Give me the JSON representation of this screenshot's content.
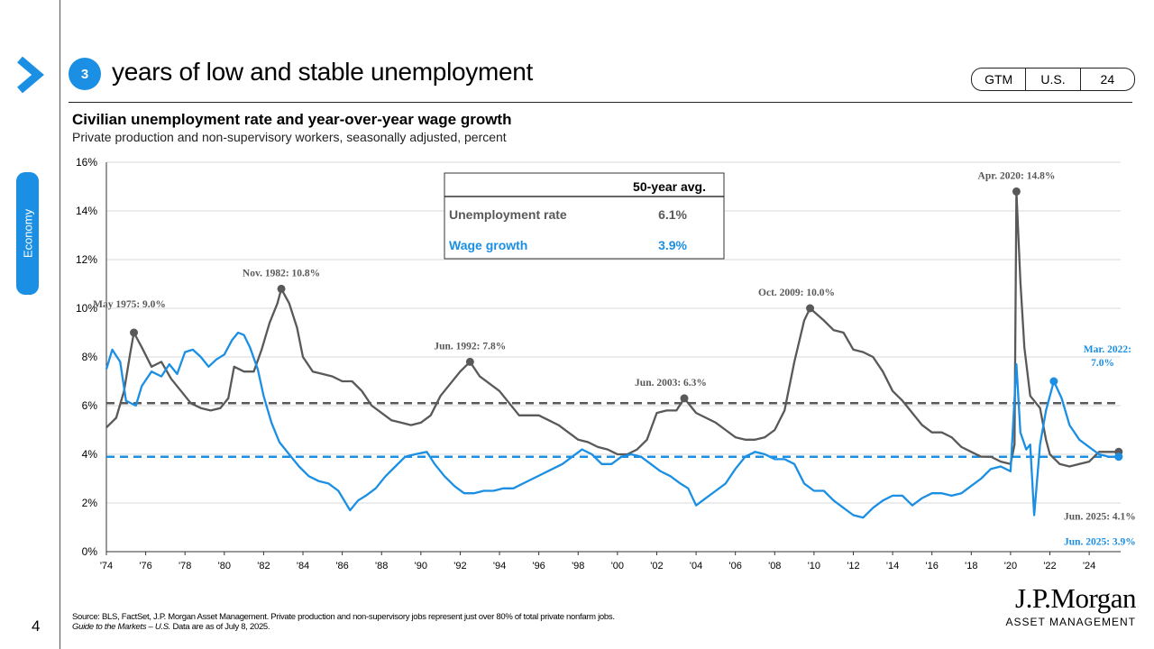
{
  "header": {
    "badge": "3",
    "headline": "years of low and stable unemployment",
    "tags": [
      "GTM",
      "U.S.",
      "24"
    ]
  },
  "sidebar": {
    "section": "Economy"
  },
  "page_number": "4",
  "chart_data": {
    "type": "line",
    "title": "Civilian unemployment rate and year-over-year wage growth",
    "subtitle": "Private production and non-supervisory workers, seasonally adjusted, percent",
    "xlim": [
      1974,
      2025.6
    ],
    "ylim": [
      0,
      16
    ],
    "x_ticks": [
      {
        "value": 1974,
        "label": "'74"
      },
      {
        "value": 1976,
        "label": "'76"
      },
      {
        "value": 1978,
        "label": "'78"
      },
      {
        "value": 1980,
        "label": "'80"
      },
      {
        "value": 1982,
        "label": "'82"
      },
      {
        "value": 1984,
        "label": "'84"
      },
      {
        "value": 1986,
        "label": "'86"
      },
      {
        "value": 1988,
        "label": "'88"
      },
      {
        "value": 1990,
        "label": "'90"
      },
      {
        "value": 1992,
        "label": "'92"
      },
      {
        "value": 1994,
        "label": "'94"
      },
      {
        "value": 1996,
        "label": "'96"
      },
      {
        "value": 1998,
        "label": "'98"
      },
      {
        "value": 2000,
        "label": "'00"
      },
      {
        "value": 2002,
        "label": "'02"
      },
      {
        "value": 2004,
        "label": "'04"
      },
      {
        "value": 2006,
        "label": "'06"
      },
      {
        "value": 2008,
        "label": "'08"
      },
      {
        "value": 2010,
        "label": "'10"
      },
      {
        "value": 2012,
        "label": "'12"
      },
      {
        "value": 2014,
        "label": "'14"
      },
      {
        "value": 2016,
        "label": "'16"
      },
      {
        "value": 2018,
        "label": "'18"
      },
      {
        "value": 2020,
        "label": "'20"
      },
      {
        "value": 2022,
        "label": "'22"
      },
      {
        "value": 2024,
        "label": "'24"
      }
    ],
    "y_ticks": [
      {
        "value": 0,
        "label": "0%"
      },
      {
        "value": 2,
        "label": "2%"
      },
      {
        "value": 4,
        "label": "4%"
      },
      {
        "value": 6,
        "label": "6%"
      },
      {
        "value": 8,
        "label": "8%"
      },
      {
        "value": 10,
        "label": "10%"
      },
      {
        "value": 12,
        "label": "12%"
      },
      {
        "value": 14,
        "label": "14%"
      },
      {
        "value": 16,
        "label": "16%"
      }
    ],
    "series": [
      {
        "name": "Unemployment rate",
        "color": "#595959",
        "average": 6.1,
        "points": [
          [
            1974.0,
            5.1
          ],
          [
            1974.5,
            5.5
          ],
          [
            1974.9,
            6.6
          ],
          [
            1975.2,
            8.1
          ],
          [
            1975.4,
            9.0
          ],
          [
            1975.8,
            8.4
          ],
          [
            1976.3,
            7.6
          ],
          [
            1976.8,
            7.8
          ],
          [
            1977.3,
            7.1
          ],
          [
            1977.8,
            6.6
          ],
          [
            1978.3,
            6.1
          ],
          [
            1978.8,
            5.9
          ],
          [
            1979.3,
            5.8
          ],
          [
            1979.8,
            5.9
          ],
          [
            1980.2,
            6.3
          ],
          [
            1980.5,
            7.6
          ],
          [
            1981.0,
            7.4
          ],
          [
            1981.5,
            7.4
          ],
          [
            1981.9,
            8.3
          ],
          [
            1982.3,
            9.4
          ],
          [
            1982.7,
            10.2
          ],
          [
            1982.9,
            10.8
          ],
          [
            1983.3,
            10.2
          ],
          [
            1983.7,
            9.2
          ],
          [
            1984.0,
            8.0
          ],
          [
            1984.5,
            7.4
          ],
          [
            1985.0,
            7.3
          ],
          [
            1985.5,
            7.2
          ],
          [
            1986.0,
            7.0
          ],
          [
            1986.5,
            7.0
          ],
          [
            1987.0,
            6.6
          ],
          [
            1987.5,
            6.0
          ],
          [
            1988.0,
            5.7
          ],
          [
            1988.5,
            5.4
          ],
          [
            1989.0,
            5.3
          ],
          [
            1989.5,
            5.2
          ],
          [
            1990.0,
            5.3
          ],
          [
            1990.5,
            5.6
          ],
          [
            1991.0,
            6.4
          ],
          [
            1991.5,
            6.9
          ],
          [
            1992.0,
            7.4
          ],
          [
            1992.5,
            7.8
          ],
          [
            1993.0,
            7.2
          ],
          [
            1993.5,
            6.9
          ],
          [
            1994.0,
            6.6
          ],
          [
            1994.5,
            6.1
          ],
          [
            1995.0,
            5.6
          ],
          [
            1995.5,
            5.6
          ],
          [
            1996.0,
            5.6
          ],
          [
            1996.5,
            5.4
          ],
          [
            1997.0,
            5.2
          ],
          [
            1997.5,
            4.9
          ],
          [
            1998.0,
            4.6
          ],
          [
            1998.5,
            4.5
          ],
          [
            1999.0,
            4.3
          ],
          [
            1999.5,
            4.2
          ],
          [
            2000.0,
            4.0
          ],
          [
            2000.5,
            4.0
          ],
          [
            2001.0,
            4.2
          ],
          [
            2001.5,
            4.6
          ],
          [
            2002.0,
            5.7
          ],
          [
            2002.5,
            5.8
          ],
          [
            2003.0,
            5.8
          ],
          [
            2003.4,
            6.3
          ],
          [
            2004.0,
            5.7
          ],
          [
            2004.5,
            5.5
          ],
          [
            2005.0,
            5.3
          ],
          [
            2005.5,
            5.0
          ],
          [
            2006.0,
            4.7
          ],
          [
            2006.5,
            4.6
          ],
          [
            2007.0,
            4.6
          ],
          [
            2007.5,
            4.7
          ],
          [
            2008.0,
            5.0
          ],
          [
            2008.5,
            5.8
          ],
          [
            2009.0,
            7.8
          ],
          [
            2009.5,
            9.5
          ],
          [
            2009.8,
            10.0
          ],
          [
            2010.5,
            9.5
          ],
          [
            2011.0,
            9.1
          ],
          [
            2011.5,
            9.0
          ],
          [
            2012.0,
            8.3
          ],
          [
            2012.5,
            8.2
          ],
          [
            2013.0,
            8.0
          ],
          [
            2013.5,
            7.4
          ],
          [
            2014.0,
            6.6
          ],
          [
            2014.5,
            6.2
          ],
          [
            2015.0,
            5.7
          ],
          [
            2015.5,
            5.2
          ],
          [
            2016.0,
            4.9
          ],
          [
            2016.5,
            4.9
          ],
          [
            2017.0,
            4.7
          ],
          [
            2017.5,
            4.3
          ],
          [
            2018.0,
            4.1
          ],
          [
            2018.5,
            3.9
          ],
          [
            2019.0,
            3.9
          ],
          [
            2019.5,
            3.7
          ],
          [
            2020.0,
            3.6
          ],
          [
            2020.2,
            4.4
          ],
          [
            2020.3,
            14.8
          ],
          [
            2020.5,
            11.1
          ],
          [
            2020.7,
            8.4
          ],
          [
            2021.0,
            6.4
          ],
          [
            2021.5,
            5.9
          ],
          [
            2021.8,
            4.6
          ],
          [
            2022.0,
            4.0
          ],
          [
            2022.5,
            3.6
          ],
          [
            2023.0,
            3.5
          ],
          [
            2023.5,
            3.6
          ],
          [
            2024.0,
            3.7
          ],
          [
            2024.5,
            4.1
          ],
          [
            2025.0,
            4.1
          ],
          [
            2025.5,
            4.1
          ]
        ],
        "annotations": [
          {
            "x": 1975.4,
            "y": 9.0,
            "label": "May 1975: 9.0%"
          },
          {
            "x": 1982.9,
            "y": 10.8,
            "label": "Nov. 1982: 10.8%"
          },
          {
            "x": 1992.5,
            "y": 7.8,
            "label": "Jun. 1992: 7.8%"
          },
          {
            "x": 2003.4,
            "y": 6.3,
            "label": "Jun. 2003: 6.3%"
          },
          {
            "x": 2009.8,
            "y": 10.0,
            "label": "Oct. 2009: 10.0%"
          },
          {
            "x": 2020.3,
            "y": 14.8,
            "label": "Apr. 2020: 14.8%"
          },
          {
            "x": 2025.5,
            "y": 4.1,
            "label": "Jun. 2025: 4.1%"
          }
        ]
      },
      {
        "name": "Wage growth",
        "color": "#1a8fe3",
        "average": 3.9,
        "points": [
          [
            1974.0,
            7.5
          ],
          [
            1974.3,
            8.3
          ],
          [
            1974.7,
            7.8
          ],
          [
            1975.0,
            6.2
          ],
          [
            1975.5,
            6.0
          ],
          [
            1975.8,
            6.8
          ],
          [
            1976.3,
            7.4
          ],
          [
            1976.8,
            7.2
          ],
          [
            1977.2,
            7.7
          ],
          [
            1977.6,
            7.3
          ],
          [
            1978.0,
            8.2
          ],
          [
            1978.4,
            8.3
          ],
          [
            1978.8,
            8.0
          ],
          [
            1979.2,
            7.6
          ],
          [
            1979.6,
            7.9
          ],
          [
            1980.0,
            8.1
          ],
          [
            1980.4,
            8.7
          ],
          [
            1980.7,
            9.0
          ],
          [
            1981.0,
            8.9
          ],
          [
            1981.3,
            8.4
          ],
          [
            1981.7,
            7.5
          ],
          [
            1982.0,
            6.4
          ],
          [
            1982.4,
            5.3
          ],
          [
            1982.8,
            4.5
          ],
          [
            1983.4,
            3.9
          ],
          [
            1983.8,
            3.5
          ],
          [
            1984.3,
            3.1
          ],
          [
            1984.8,
            2.9
          ],
          [
            1985.3,
            2.8
          ],
          [
            1985.8,
            2.5
          ],
          [
            1986.4,
            1.7
          ],
          [
            1986.8,
            2.1
          ],
          [
            1987.2,
            2.3
          ],
          [
            1987.7,
            2.6
          ],
          [
            1988.2,
            3.1
          ],
          [
            1988.7,
            3.5
          ],
          [
            1989.2,
            3.9
          ],
          [
            1989.7,
            4.0
          ],
          [
            1990.3,
            4.1
          ],
          [
            1990.7,
            3.6
          ],
          [
            1991.2,
            3.1
          ],
          [
            1991.7,
            2.7
          ],
          [
            1992.2,
            2.4
          ],
          [
            1992.7,
            2.4
          ],
          [
            1993.2,
            2.5
          ],
          [
            1993.7,
            2.5
          ],
          [
            1994.2,
            2.6
          ],
          [
            1994.7,
            2.6
          ],
          [
            1995.2,
            2.8
          ],
          [
            1995.7,
            3.0
          ],
          [
            1996.2,
            3.2
          ],
          [
            1996.7,
            3.4
          ],
          [
            1997.2,
            3.6
          ],
          [
            1997.7,
            3.9
          ],
          [
            1998.2,
            4.2
          ],
          [
            1998.7,
            4.0
          ],
          [
            1999.2,
            3.6
          ],
          [
            1999.7,
            3.6
          ],
          [
            2000.2,
            3.9
          ],
          [
            2000.7,
            4.0
          ],
          [
            2001.2,
            3.9
          ],
          [
            2001.7,
            3.6
          ],
          [
            2002.2,
            3.3
          ],
          [
            2002.7,
            3.1
          ],
          [
            2003.2,
            2.8
          ],
          [
            2003.6,
            2.6
          ],
          [
            2004.0,
            1.9
          ],
          [
            2004.5,
            2.2
          ],
          [
            2005.0,
            2.5
          ],
          [
            2005.5,
            2.8
          ],
          [
            2006.0,
            3.4
          ],
          [
            2006.5,
            3.9
          ],
          [
            2007.0,
            4.1
          ],
          [
            2007.5,
            4.0
          ],
          [
            2008.0,
            3.8
          ],
          [
            2008.5,
            3.8
          ],
          [
            2009.0,
            3.6
          ],
          [
            2009.5,
            2.8
          ],
          [
            2010.0,
            2.5
          ],
          [
            2010.5,
            2.5
          ],
          [
            2011.0,
            2.1
          ],
          [
            2011.5,
            1.8
          ],
          [
            2012.0,
            1.5
          ],
          [
            2012.5,
            1.4
          ],
          [
            2013.0,
            1.8
          ],
          [
            2013.5,
            2.1
          ],
          [
            2014.0,
            2.3
          ],
          [
            2014.5,
            2.3
          ],
          [
            2015.0,
            1.9
          ],
          [
            2015.5,
            2.2
          ],
          [
            2016.0,
            2.4
          ],
          [
            2016.5,
            2.4
          ],
          [
            2017.0,
            2.3
          ],
          [
            2017.5,
            2.4
          ],
          [
            2018.0,
            2.7
          ],
          [
            2018.5,
            3.0
          ],
          [
            2019.0,
            3.4
          ],
          [
            2019.5,
            3.5
          ],
          [
            2020.0,
            3.3
          ],
          [
            2020.3,
            7.7
          ],
          [
            2020.5,
            4.9
          ],
          [
            2020.8,
            4.2
          ],
          [
            2021.0,
            4.4
          ],
          [
            2021.2,
            1.5
          ],
          [
            2021.5,
            4.4
          ],
          [
            2021.8,
            5.8
          ],
          [
            2022.2,
            7.0
          ],
          [
            2022.6,
            6.3
          ],
          [
            2023.0,
            5.2
          ],
          [
            2023.5,
            4.6
          ],
          [
            2024.0,
            4.3
          ],
          [
            2024.5,
            4.0
          ],
          [
            2025.0,
            3.9
          ],
          [
            2025.5,
            3.9
          ]
        ],
        "annotations": [
          {
            "x": 2022.2,
            "y": 7.0,
            "label": "Mar. 2022: 7.0%"
          },
          {
            "x": 2025.5,
            "y": 3.9,
            "label": "Jun. 2025: 3.9%"
          }
        ]
      }
    ],
    "table": {
      "header": "50-year avg.",
      "rows": [
        {
          "label": "Unemployment rate",
          "value": "6.1%"
        },
        {
          "label": "Wage growth",
          "value": "3.9%"
        }
      ]
    }
  },
  "footnote": {
    "line1": "Source: BLS, FactSet, J.P. Morgan Asset Management. Private production and non-supervisory jobs represent just over 80% of total private nonfarm jobs.",
    "line2_italic": "Guide to the Markets – U.S.",
    "line2_rest": " Data are as of July 8, 2025."
  },
  "brand": {
    "name": "J.P.Morgan",
    "sub": "ASSET MANAGEMENT"
  }
}
